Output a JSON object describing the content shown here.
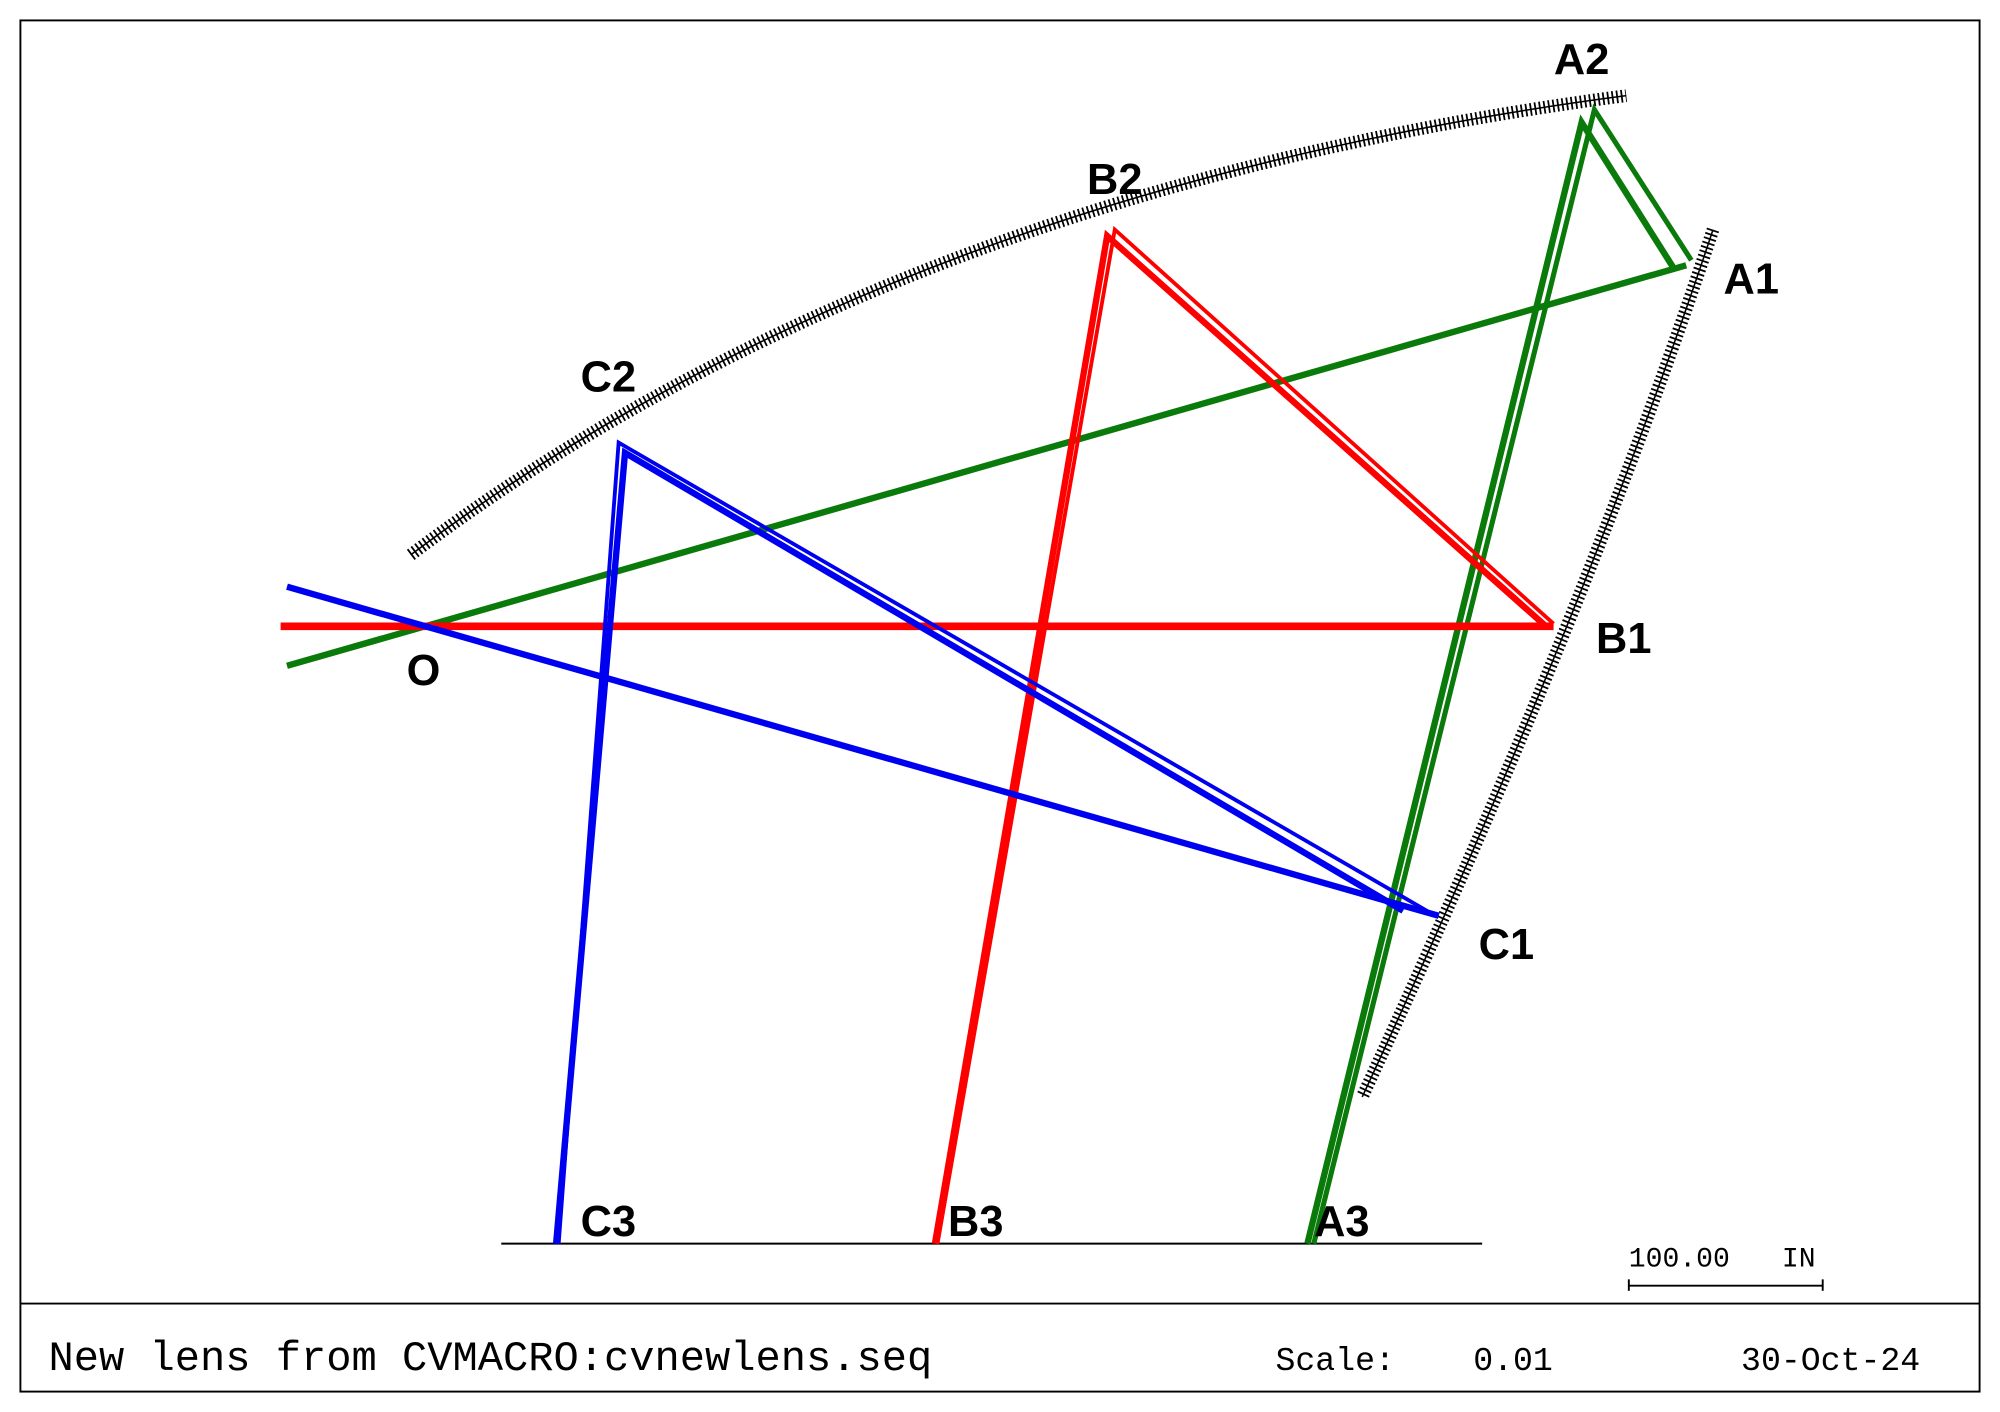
{
  "labels": [
    "O",
    "A1",
    "A2",
    "A3",
    "B1",
    "B2",
    "B3",
    "C1",
    "C2",
    "C3"
  ],
  "scale_bar": {
    "length": "100.00",
    "unit": "IN"
  },
  "footer": {
    "title": "New lens from CVMACRO:cvnewlens.seq",
    "scale_label": "Scale:",
    "scale": "0.01",
    "date": "30-Oct-24"
  }
}
